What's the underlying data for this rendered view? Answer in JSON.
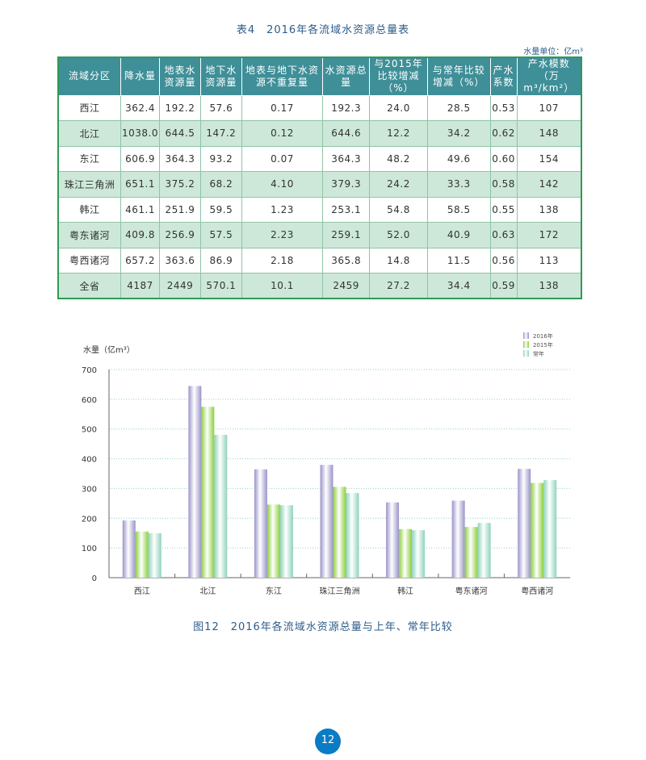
{
  "table": {
    "title": "表4　2016年各流域水资源总量表",
    "unit": "水量单位：亿m³",
    "headers": [
      "流域分区",
      "降水量",
      "地表水资源量",
      "地下水资源量",
      "地表与地下水资源不重复量",
      "水资源总量",
      "与2015年比较增减（%）",
      "与常年比较增减（%）",
      "产水系数",
      "产水模数（万m³/km²）"
    ],
    "rows": [
      [
        "西江",
        "362.4",
        "192.2",
        "57.6",
        "0.17",
        "192.3",
        "24.0",
        "28.5",
        "0.53",
        "107"
      ],
      [
        "北江",
        "1038.0",
        "644.5",
        "147.2",
        "0.12",
        "644.6",
        "12.2",
        "34.2",
        "0.62",
        "148"
      ],
      [
        "东江",
        "606.9",
        "364.3",
        "93.2",
        "0.07",
        "364.3",
        "48.2",
        "49.6",
        "0.60",
        "154"
      ],
      [
        "珠江三角洲",
        "651.1",
        "375.2",
        "68.2",
        "4.10",
        "379.3",
        "24.2",
        "33.3",
        "0.58",
        "142"
      ],
      [
        "韩江",
        "461.1",
        "251.9",
        "59.5",
        "1.23",
        "253.1",
        "54.8",
        "58.5",
        "0.55",
        "138"
      ],
      [
        "粤东诸河",
        "409.8",
        "256.9",
        "57.5",
        "2.23",
        "259.1",
        "52.0",
        "40.9",
        "0.63",
        "172"
      ],
      [
        "粤西诸河",
        "657.2",
        "363.6",
        "86.9",
        "2.18",
        "365.8",
        "14.8",
        "11.5",
        "0.56",
        "113"
      ],
      [
        "全省",
        "4187",
        "2449",
        "570.1",
        "10.1",
        "2459",
        "27.2",
        "34.4",
        "0.59",
        "138"
      ]
    ]
  },
  "chart_data": {
    "type": "bar",
    "title": "图12　2016年各流域水资源总量与上年、常年比较",
    "ylabel": "水量（亿m³）",
    "xlabel": "",
    "categories": [
      "西江",
      "北江",
      "东江",
      "珠江三角洲",
      "韩江",
      "粤东诸河",
      "粤西诸河"
    ],
    "ylim": [
      0,
      700
    ],
    "yticks": [
      0,
      100,
      200,
      300,
      400,
      500,
      600,
      700
    ],
    "grid": true,
    "legend": "top-right",
    "series": [
      {
        "name": "2016年",
        "color": "#9a94c8",
        "values": [
          192.3,
          644.6,
          364.3,
          379.3,
          253.1,
          259.1,
          365.8
        ]
      },
      {
        "name": "2015年",
        "color": "#8ccf3c",
        "values": [
          155.1,
          574.5,
          245.8,
          305.4,
          163.5,
          170.5,
          318.6
        ]
      },
      {
        "name": "常年",
        "color": "#8fd3bd",
        "values": [
          149.6,
          480.3,
          243.5,
          284.5,
          159.7,
          183.9,
          328.1
        ]
      }
    ]
  },
  "page_number": "12"
}
